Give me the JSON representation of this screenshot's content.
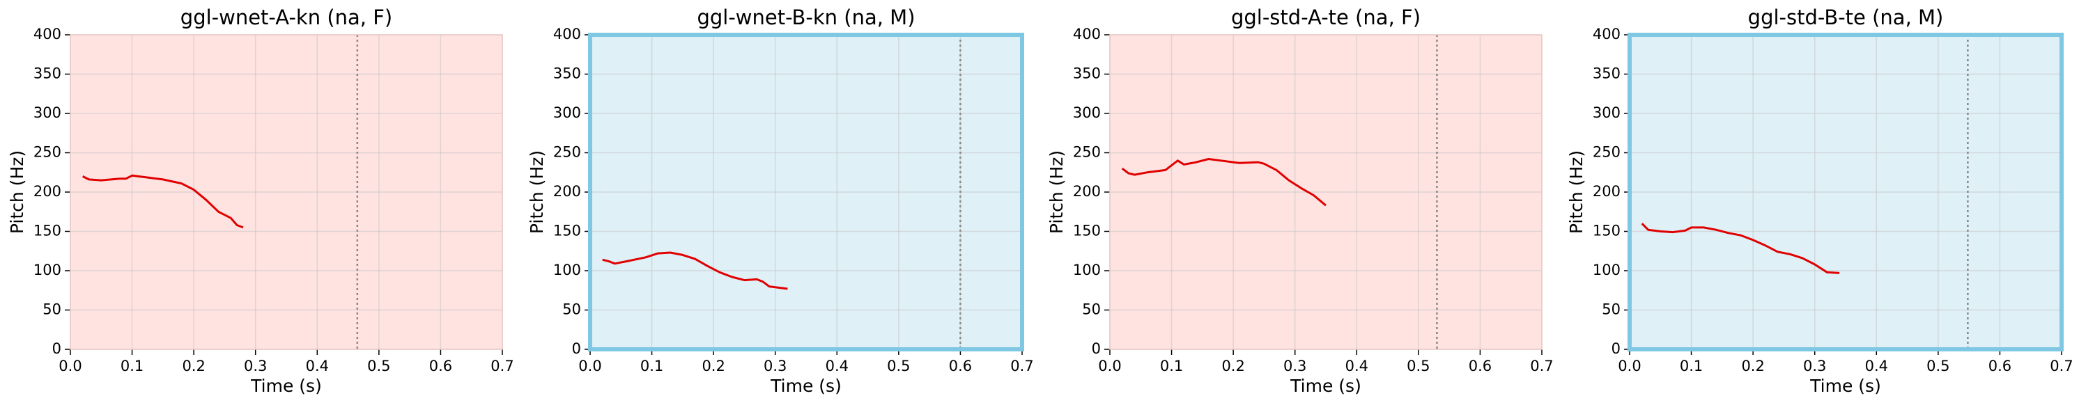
{
  "chart_data": [
    {
      "type": "line",
      "title": "ggl-wnet-A-kn (na, F)",
      "xlabel": "Time (s)",
      "ylabel": "Pitch (Hz)",
      "background": "#ffe3e1",
      "color": "#e00000",
      "x": [
        0.02,
        0.03,
        0.05,
        0.08,
        0.09,
        0.1,
        0.12,
        0.15,
        0.18,
        0.2,
        0.22,
        0.24,
        0.26,
        0.27,
        0.28
      ],
      "values": [
        220,
        216,
        215,
        217,
        217,
        221,
        219,
        216,
        211,
        203,
        190,
        175,
        167,
        158,
        155
      ],
      "vline": 0.465,
      "xlim": [
        0,
        0.7
      ],
      "ylim": [
        0,
        400
      ],
      "xticks": [
        {
          "value": 0,
          "label": "0.0"
        },
        0.1,
        0.2,
        0.3,
        0.4,
        0.5,
        0.6,
        0.7
      ],
      "yticks": [
        0,
        50,
        100,
        150,
        200,
        250,
        300,
        350,
        400
      ],
      "grid": true
    },
    {
      "type": "line",
      "title": "ggl-wnet-B-kn (na, M)",
      "xlabel": "Time (s)",
      "ylabel": "Pitch (Hz)",
      "background": "#dff0f7",
      "border": "#7ec8e3",
      "color": "#e00000",
      "x": [
        0.02,
        0.03,
        0.04,
        0.06,
        0.09,
        0.11,
        0.13,
        0.15,
        0.17,
        0.19,
        0.21,
        0.23,
        0.25,
        0.27,
        0.28,
        0.29,
        0.32
      ],
      "values": [
        114,
        112,
        109,
        112,
        117,
        122,
        123,
        120,
        115,
        106,
        98,
        92,
        88,
        89,
        86,
        80,
        77
      ],
      "vline": 0.6,
      "xlim": [
        0,
        0.7
      ],
      "ylim": [
        0,
        400
      ],
      "xticks": [
        {
          "value": 0,
          "label": "0.0"
        },
        0.1,
        0.2,
        0.3,
        0.4,
        0.5,
        0.6,
        0.7
      ],
      "yticks": [
        0,
        50,
        100,
        150,
        200,
        250,
        300,
        350,
        400
      ],
      "grid": true
    },
    {
      "type": "line",
      "title": "ggl-std-A-te (na, F)",
      "xlabel": "Time (s)",
      "ylabel": "Pitch (Hz)",
      "background": "#ffe3e1",
      "color": "#e00000",
      "x": [
        0.02,
        0.03,
        0.04,
        0.06,
        0.09,
        0.11,
        0.12,
        0.14,
        0.16,
        0.18,
        0.21,
        0.24,
        0.25,
        0.27,
        0.29,
        0.31,
        0.33,
        0.35
      ],
      "values": [
        230,
        224,
        222,
        225,
        228,
        240,
        235,
        238,
        242,
        240,
        237,
        238,
        236,
        228,
        215,
        205,
        196,
        183
      ],
      "vline": 0.53,
      "xlim": [
        0,
        0.7
      ],
      "ylim": [
        0,
        400
      ],
      "xticks": [
        {
          "value": 0,
          "label": "0.0"
        },
        0.1,
        0.2,
        0.3,
        0.4,
        0.5,
        0.6,
        0.7
      ],
      "yticks": [
        0,
        50,
        100,
        150,
        200,
        250,
        300,
        350,
        400
      ],
      "grid": true
    },
    {
      "type": "line",
      "title": "ggl-std-B-te (na, M)",
      "xlabel": "Time (s)",
      "ylabel": "Pitch (Hz)",
      "background": "#dff0f7",
      "border": "#7ec8e3",
      "color": "#e00000",
      "x": [
        0.02,
        0.03,
        0.05,
        0.07,
        0.09,
        0.1,
        0.12,
        0.14,
        0.16,
        0.18,
        0.2,
        0.22,
        0.24,
        0.26,
        0.28,
        0.3,
        0.32,
        0.34
      ],
      "values": [
        160,
        152,
        150,
        149,
        151,
        155,
        155,
        152,
        148,
        145,
        139,
        132,
        124,
        121,
        116,
        108,
        98,
        97
      ],
      "vline": 0.548,
      "xlim": [
        0,
        0.7
      ],
      "ylim": [
        0,
        400
      ],
      "xticks": [
        {
          "value": 0,
          "label": "0.0"
        },
        0.1,
        0.2,
        0.3,
        0.4,
        0.5,
        0.6,
        0.7
      ],
      "yticks": [
        0,
        50,
        100,
        150,
        200,
        250,
        300,
        350,
        400
      ],
      "grid": true
    }
  ]
}
